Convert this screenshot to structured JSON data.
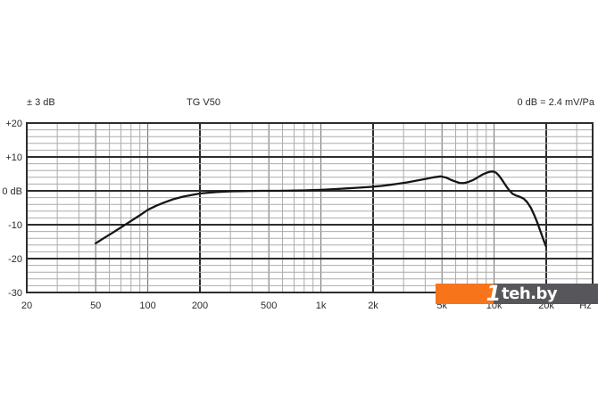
{
  "header": {
    "tolerance": "± 3 dB",
    "model": "TG V50",
    "sensitivity": "0 dB = 2.4 mV/Pa"
  },
  "watermark": {
    "brand_prefix": "1",
    "brand_text": "teh.by",
    "orange_color": "#F7741B",
    "gray_color": "#57575B",
    "text_color": "#ffffff"
  },
  "chart_data": {
    "type": "line",
    "title": "TG V50",
    "subtitle_left": "± 3 dB",
    "subtitle_right": "0 dB = 2.4 mV/Pa",
    "xlabel": "Hz",
    "ylabel": "dB",
    "x_scale": "log",
    "x_range_hz": [
      20,
      37000
    ],
    "ylim": [
      -30,
      20
    ],
    "grid": true,
    "y_major_step": 10,
    "y_minor_step": 2,
    "colors": {
      "grid_minor": "#ababab",
      "grid_mid": "#6b6b6b",
      "grid_major": "#2d2d2d",
      "curve": "#161616",
      "label": "#2b2b2b"
    },
    "x_ticks": [
      {
        "f": 20,
        "label": "20"
      },
      {
        "f": 50,
        "label": "50"
      },
      {
        "f": 100,
        "label": "100"
      },
      {
        "f": 200,
        "label": "200"
      },
      {
        "f": 500,
        "label": "500"
      },
      {
        "f": 1000,
        "label": "1k"
      },
      {
        "f": 2000,
        "label": "2k"
      },
      {
        "f": 5000,
        "label": "5k"
      },
      {
        "f": 10000,
        "label": "10k"
      },
      {
        "f": 20000,
        "label": "20k"
      }
    ],
    "x_unit_label": "Hz",
    "x_major": [
      20,
      200,
      2000,
      20000
    ],
    "x_labeled_mid": [
      50,
      100,
      500,
      1000,
      5000,
      10000
    ],
    "x_minor": [
      30,
      40,
      60,
      70,
      80,
      90,
      300,
      400,
      600,
      700,
      800,
      900,
      3000,
      4000,
      6000,
      7000,
      8000,
      9000,
      30000
    ],
    "y_ticks": [
      {
        "v": 20,
        "label": "+20"
      },
      {
        "v": 10,
        "label": "+10"
      },
      {
        "v": 0,
        "label": "0 dB"
      },
      {
        "v": -10,
        "label": "-10"
      },
      {
        "v": -20,
        "label": "-20"
      },
      {
        "v": -30,
        "label": "-30"
      }
    ],
    "series": [
      {
        "name": "on-axis frequency response (dB vs Hz)",
        "points": [
          [
            50,
            -15.5
          ],
          [
            56,
            -13.9
          ],
          [
            63,
            -12.3
          ],
          [
            71,
            -10.6
          ],
          [
            80,
            -8.9
          ],
          [
            90,
            -7.2
          ],
          [
            100,
            -5.6
          ],
          [
            112,
            -4.4
          ],
          [
            125,
            -3.4
          ],
          [
            140,
            -2.5
          ],
          [
            160,
            -1.7
          ],
          [
            180,
            -1.2
          ],
          [
            200,
            -0.8
          ],
          [
            224,
            -0.55
          ],
          [
            250,
            -0.35
          ],
          [
            280,
            -0.2
          ],
          [
            315,
            -0.12
          ],
          [
            355,
            -0.07
          ],
          [
            400,
            -0.03
          ],
          [
            450,
            0
          ],
          [
            500,
            0
          ],
          [
            560,
            0
          ],
          [
            630,
            0.03
          ],
          [
            710,
            0.07
          ],
          [
            800,
            0.12
          ],
          [
            900,
            0.2
          ],
          [
            1000,
            0.3
          ],
          [
            1120,
            0.42
          ],
          [
            1250,
            0.55
          ],
          [
            1400,
            0.7
          ],
          [
            1600,
            0.9
          ],
          [
            1800,
            1.05
          ],
          [
            2000,
            1.2
          ],
          [
            2240,
            1.45
          ],
          [
            2500,
            1.75
          ],
          [
            2800,
            2.1
          ],
          [
            3150,
            2.5
          ],
          [
            3550,
            3.0
          ],
          [
            4000,
            3.5
          ],
          [
            4500,
            4.0
          ],
          [
            4900,
            4.25
          ],
          [
            5300,
            3.9
          ],
          [
            5600,
            3.3
          ],
          [
            6000,
            2.7
          ],
          [
            6300,
            2.35
          ],
          [
            6700,
            2.3
          ],
          [
            7100,
            2.6
          ],
          [
            7500,
            3.1
          ],
          [
            8000,
            3.9
          ],
          [
            8500,
            4.7
          ],
          [
            9000,
            5.3
          ],
          [
            9500,
            5.65
          ],
          [
            9900,
            5.7
          ],
          [
            10300,
            5.3
          ],
          [
            10700,
            4.4
          ],
          [
            11200,
            3.0
          ],
          [
            11700,
            1.5
          ],
          [
            12200,
            0.2
          ],
          [
            12800,
            -0.9
          ],
          [
            13400,
            -1.4
          ],
          [
            14000,
            -1.7
          ],
          [
            14800,
            -2.3
          ],
          [
            15500,
            -3.3
          ],
          [
            16300,
            -5.0
          ],
          [
            17000,
            -7.0
          ],
          [
            17800,
            -9.5
          ],
          [
            18700,
            -12.5
          ],
          [
            19400,
            -14.8
          ],
          [
            19900,
            -16.3
          ]
        ]
      }
    ]
  }
}
